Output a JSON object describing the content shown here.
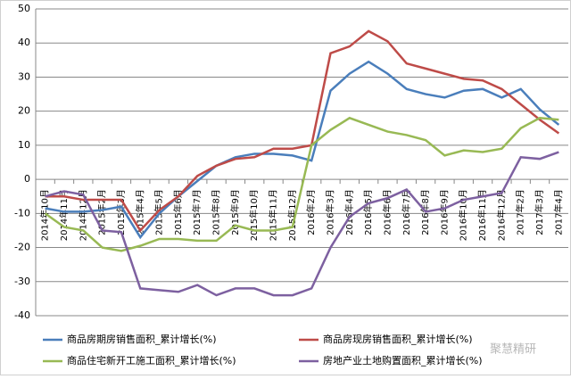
{
  "chart_data": {
    "type": "line",
    "categories": [
      "2014年10月",
      "2014年11月",
      "2014年12月",
      "2015年2月",
      "2015年3月",
      "2015年4月",
      "2015年5月",
      "2015年6月",
      "2015年7月",
      "2015年8月",
      "2015年9月",
      "2015年10月",
      "2015年11月",
      "2015年12月",
      "2016年2月",
      "2016年3月",
      "2016年4月",
      "2016年5月",
      "2016年6月",
      "2016年7月",
      "2016年8月",
      "2016年9月",
      "2016年10月",
      "2016年11月",
      "2016年12月",
      "2017年2月",
      "2017年3月",
      "2017年4月"
    ],
    "series": [
      {
        "name": "商品房期房销售面积_累计增长(%)",
        "color": "#4a7ebb",
        "values": [
          -8.5,
          -9.5,
          -9.5,
          -9,
          -8,
          -17,
          -10,
          -5,
          -0.5,
          4,
          6.5,
          7.5,
          7.5,
          7,
          5.5,
          26,
          31,
          34.5,
          31,
          26.5,
          25,
          24,
          26,
          26.5,
          24,
          26.5,
          20.5,
          16
        ]
      },
      {
        "name": "商品房现房销售面积_累计增长(%)",
        "color": "#be4b48",
        "values": [
          -5,
          -5,
          -6,
          -6,
          -6,
          -15,
          -9,
          -5,
          1,
          4,
          6,
          6.5,
          9,
          9,
          10,
          37,
          39,
          43.5,
          40.5,
          34,
          32.5,
          31,
          29.5,
          29,
          26.5,
          22,
          17.5,
          13.5
        ]
      },
      {
        "name": "商品住宅新开工施工面积_累计增长(%)",
        "color": "#98b954",
        "values": [
          -10,
          -14,
          -15,
          -20,
          -21,
          -19.5,
          -17.5,
          -17.5,
          -18,
          -18,
          -13.5,
          -15,
          -15,
          -14,
          10,
          14.5,
          18,
          16,
          14,
          13,
          11.5,
          7,
          8.5,
          8,
          9,
          15,
          18,
          17.5
        ]
      },
      {
        "name": "房地产业土地购置面积_累计增长(%)",
        "color": "#7d60a0",
        "values": [
          -5,
          -3.5,
          -4.5,
          -15,
          -15.5,
          -32,
          -32.5,
          -33,
          -31,
          -34,
          -32,
          -32,
          -34,
          -34,
          -32,
          -20,
          -11,
          -7,
          -5.5,
          -3,
          -9.5,
          -8.5,
          -6,
          -5,
          -4,
          6.5,
          6,
          8
        ]
      }
    ],
    "ylim": [
      -40,
      50
    ],
    "yticks": [
      -40,
      -30,
      -20,
      -10,
      0,
      10,
      20,
      30,
      40,
      50
    ],
    "watermark": "聚慧精研"
  }
}
